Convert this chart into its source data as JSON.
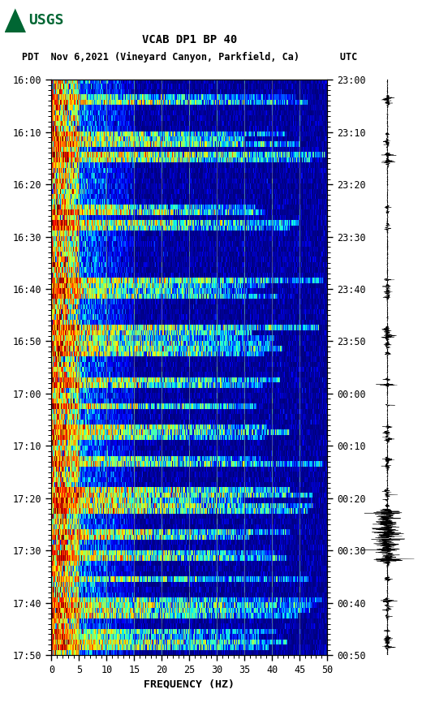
{
  "title_line1": "VCAB DP1 BP 40",
  "title_line2": "PDT  Nov 6,2021 (Vineyard Canyon, Parkfield, Ca)       UTC",
  "xlabel": "FREQUENCY (HZ)",
  "freq_min": 0,
  "freq_max": 50,
  "freq_ticks": [
    0,
    5,
    10,
    15,
    20,
    25,
    30,
    35,
    40,
    45,
    50
  ],
  "time_labels_left": [
    "16:00",
    "16:10",
    "16:20",
    "16:30",
    "16:40",
    "16:50",
    "17:00",
    "17:10",
    "17:20",
    "17:30",
    "17:40",
    "17:50"
  ],
  "time_labels_right": [
    "23:00",
    "23:10",
    "23:20",
    "23:30",
    "23:40",
    "23:50",
    "00:00",
    "00:10",
    "00:20",
    "00:30",
    "00:40",
    "00:50"
  ],
  "n_time_steps": 110,
  "n_freq_bins": 500,
  "background_color": "#ffffff",
  "usgs_green": "#006633",
  "vertical_lines_freq": [
    5,
    10,
    15,
    20,
    25,
    30,
    35,
    40,
    45
  ],
  "colormap": "jet",
  "event_times": [
    3,
    4,
    10,
    11,
    12,
    14,
    15,
    24,
    25,
    27,
    28,
    38,
    39,
    40,
    41,
    47,
    48,
    49,
    50,
    51,
    52,
    57,
    58,
    62,
    66,
    67,
    68,
    72,
    73,
    78,
    79,
    80,
    81,
    82,
    86,
    87,
    90,
    91,
    95,
    99,
    100,
    101,
    102,
    105,
    106,
    107,
    108
  ],
  "seed": 12345
}
